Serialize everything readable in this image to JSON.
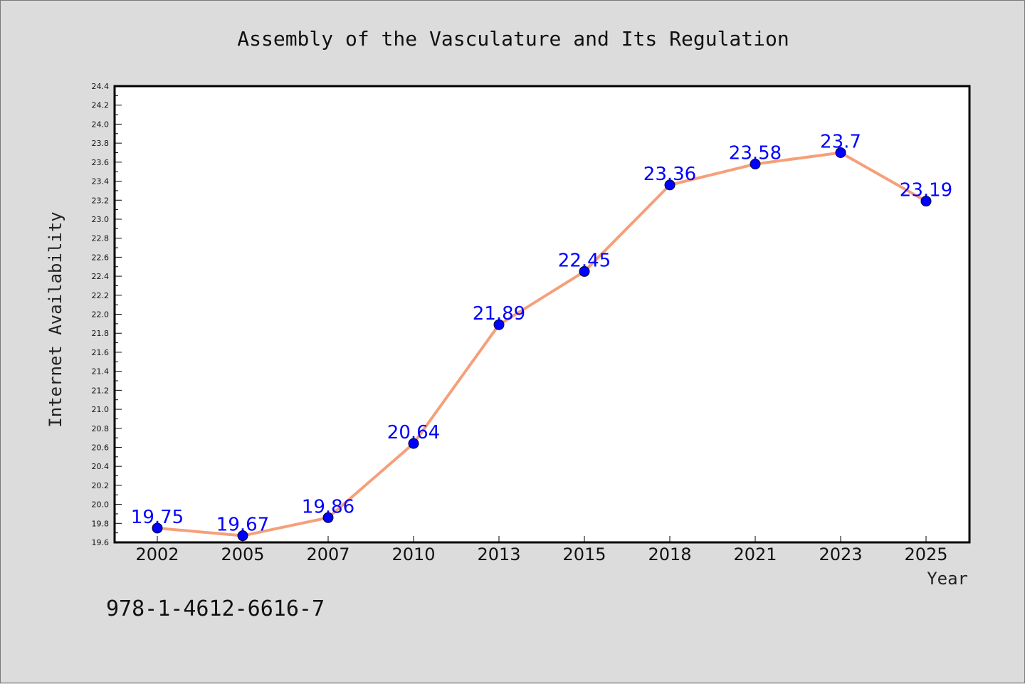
{
  "chart_data": {
    "type": "line",
    "title": "Assembly of the Vasculature and Its Regulation",
    "xlabel": "Year",
    "ylabel": "Internet Availability",
    "categories": [
      "2002",
      "2005",
      "2007",
      "2010",
      "2013",
      "2015",
      "2018",
      "2021",
      "2023",
      "2025"
    ],
    "series": [
      {
        "values": [
          19.75,
          19.67,
          19.86,
          20.64,
          21.89,
          22.45,
          23.36,
          23.58,
          23.7,
          23.19
        ],
        "data_labels": [
          "19.75",
          "19.67",
          "19.86",
          "20.64",
          "21.89",
          "22.45",
          "23.36",
          "23.58",
          "23.7",
          "23.19"
        ],
        "line_color": "#f5a07a",
        "marker_color": "#0000ff"
      }
    ],
    "ylim": [
      19.6,
      24.4
    ],
    "yticks": [
      "19.6",
      "19.8",
      "20.0",
      "20.2",
      "20.4",
      "20.6",
      "20.8",
      "21.0",
      "21.2",
      "21.4",
      "21.6",
      "21.8",
      "22.0",
      "22.2",
      "22.4",
      "22.6",
      "22.8",
      "23.0",
      "23.2",
      "23.4",
      "23.6",
      "23.8",
      "24.0",
      "24.2",
      "24.4"
    ],
    "grid": false,
    "legend": "none"
  },
  "footer": {
    "isbn": "978-1-4612-6616-7"
  },
  "colors": {
    "background": "#dcdcdc",
    "plot_background": "#ffffff",
    "label_color": "#0000ff"
  }
}
